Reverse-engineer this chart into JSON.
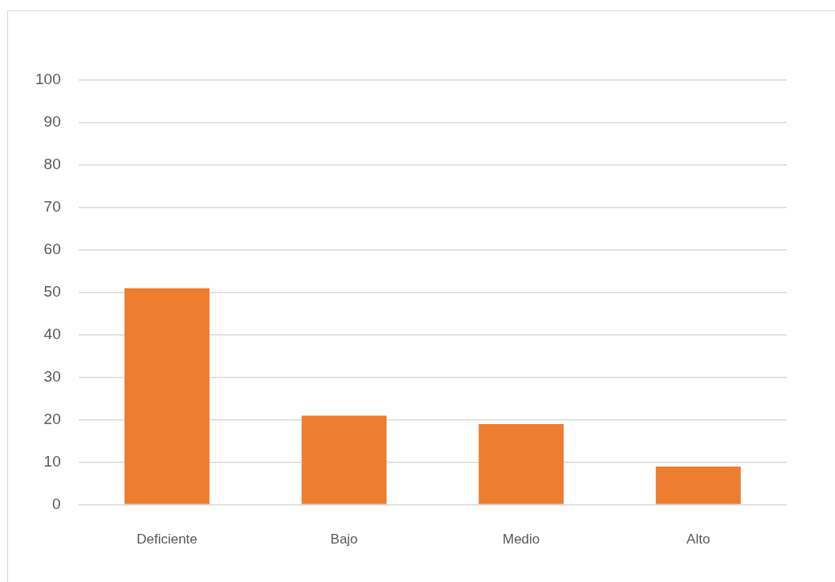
{
  "chart_data": {
    "type": "bar",
    "categories": [
      "Deficiente",
      "Bajo",
      "Medio",
      "Alto"
    ],
    "values": [
      51,
      21,
      19,
      9
    ],
    "color": "#ed7d31",
    "ylim": [
      0,
      100
    ],
    "yticks": [
      0,
      10,
      20,
      30,
      40,
      50,
      60,
      70,
      80,
      90,
      100
    ],
    "grid": "y"
  }
}
